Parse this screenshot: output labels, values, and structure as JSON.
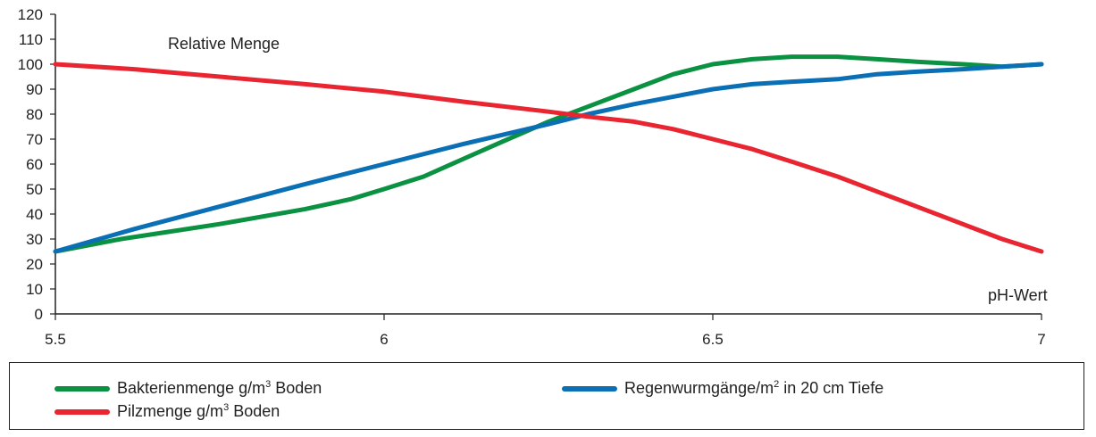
{
  "chart_data": {
    "type": "line",
    "annotation": "Relative Menge",
    "xlabel": "pH-Wert",
    "ylabel": "",
    "xlim": [
      5.5,
      7
    ],
    "ylim": [
      0,
      120
    ],
    "xticks": [
      "5.5",
      "6",
      "6.5",
      "7"
    ],
    "yticks": [
      "0",
      "10",
      "20",
      "30",
      "40",
      "50",
      "60",
      "70",
      "80",
      "90",
      "100",
      "110",
      "120"
    ],
    "grid": false,
    "legend_position": "bottom",
    "series": [
      {
        "name": "Bakterienmenge g/m³ Boden",
        "color": "#0a9141",
        "x": [
          5.5,
          5.6,
          5.75,
          5.88,
          5.95,
          6.0,
          6.06,
          6.12,
          6.18,
          6.25,
          6.32,
          6.38,
          6.44,
          6.5,
          6.56,
          6.62,
          6.69,
          6.75,
          6.81,
          6.88,
          6.94,
          7.0
        ],
        "y": [
          25,
          30,
          36,
          42,
          46,
          50,
          55,
          62,
          69,
          77,
          84,
          90,
          96,
          100,
          102,
          103,
          103,
          102,
          101,
          100,
          99,
          100
        ]
      },
      {
        "name": "Regenwurmgänge/m² in 20 cm Tiefe",
        "color": "#0a6fb5",
        "x": [
          5.5,
          5.62,
          5.75,
          5.88,
          6.0,
          6.12,
          6.25,
          6.31,
          6.38,
          6.44,
          6.5,
          6.56,
          6.62,
          6.69,
          6.75,
          6.81,
          6.88,
          6.94,
          7.0
        ],
        "y": [
          25,
          34,
          43,
          52,
          60,
          68,
          76,
          80,
          84,
          87,
          90,
          92,
          93,
          94,
          96,
          97,
          98,
          99,
          100
        ]
      },
      {
        "name": "Pilzmenge g/m³ Boden",
        "color": "#e82530",
        "x": [
          5.5,
          5.62,
          5.75,
          5.88,
          6.0,
          6.12,
          6.25,
          6.31,
          6.38,
          6.44,
          6.5,
          6.56,
          6.62,
          6.69,
          6.75,
          6.81,
          6.88,
          6.94,
          7.0
        ],
        "y": [
          100,
          98,
          95,
          92,
          89,
          85,
          81,
          79,
          77,
          74,
          70,
          66,
          61,
          55,
          49,
          43,
          36,
          30,
          25
        ]
      }
    ],
    "legend": [
      {
        "label_main": "Bakterienmenge g/m",
        "label_sup": "3",
        "label_rest": " Boden"
      },
      {
        "label_main": "Regenwurmgänge/m",
        "label_sup": "2",
        "label_rest": " in 20 cm Tiefe"
      },
      {
        "label_main": "Pilzmenge g/m",
        "label_sup": "3",
        "label_rest": " Boden"
      }
    ]
  }
}
